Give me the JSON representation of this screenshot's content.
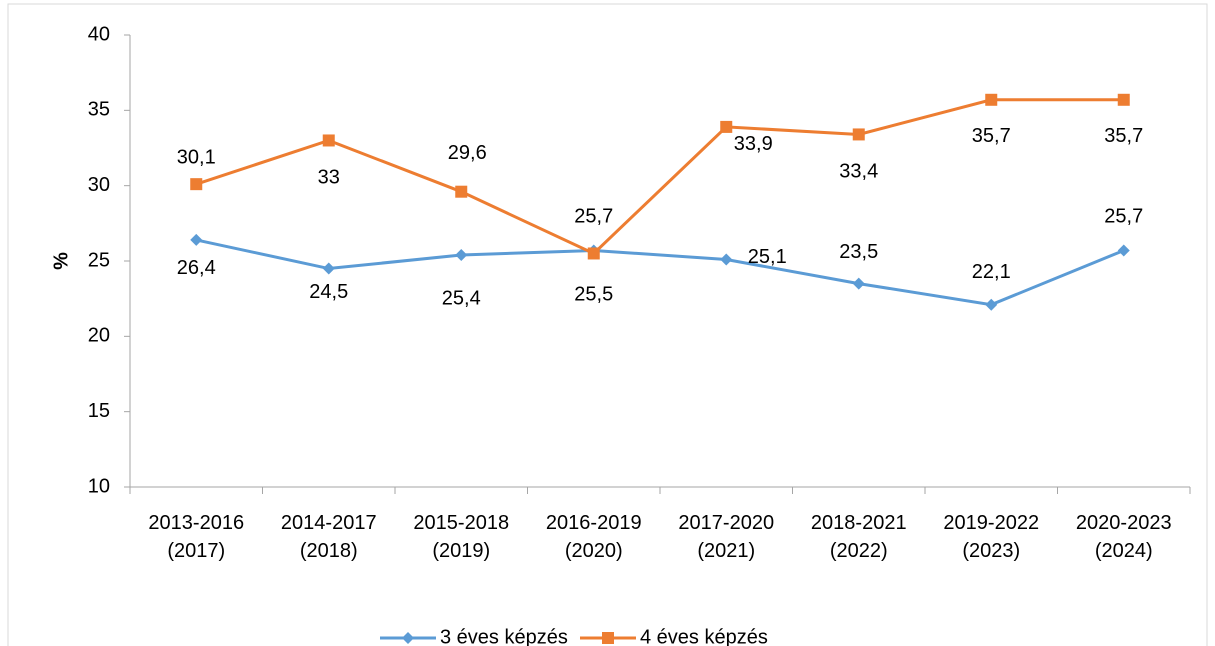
{
  "chart_data": {
    "type": "line",
    "y_label": "%",
    "categories": [
      "2013-2016 (2017)",
      "2014-2017 (2018)",
      "2015-2018 (2019)",
      "2016-2019 (2020)",
      "2017-2020 (2021)",
      "2018-2021 (2022)",
      "2019-2022 (2023)",
      "2020-2023 (2024)"
    ],
    "series": [
      {
        "name": "3 éves képzés",
        "color": "#5b9bd5",
        "marker": "diamond",
        "values": [
          26.4,
          24.5,
          25.4,
          25.7,
          25.1,
          23.5,
          22.1,
          25.7
        ],
        "value_labels": [
          "26,4",
          "24,5",
          "25,4",
          "25,7",
          "25,1",
          "23,5",
          "22,1",
          "25,7"
        ]
      },
      {
        "name": "4 éves képzés",
        "color": "#ed7d31",
        "marker": "square",
        "values": [
          30.1,
          33,
          29.6,
          25.5,
          33.9,
          33.4,
          35.7,
          35.7
        ],
        "value_labels": [
          "30,1",
          "33",
          "29,6",
          "25,5",
          "33,9",
          "33,4",
          "35,7",
          "35,7"
        ]
      }
    ],
    "ylim": [
      10,
      40
    ],
    "yticks": [
      10,
      15,
      20,
      25,
      30,
      35,
      40
    ],
    "grid": false,
    "legend": "bottom"
  }
}
